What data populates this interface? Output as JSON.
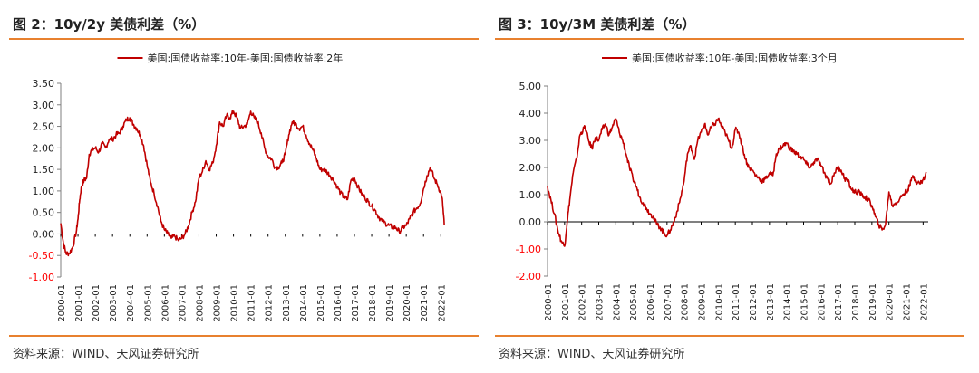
{
  "colors": {
    "series": "#c00000",
    "accent_rule": "#e8812f",
    "negative_label": "#ff0000",
    "axis": "#7f7f7f"
  },
  "charts": [
    {
      "title": "图 2：10y/2y 美债利差（%）",
      "source": "资料来源：WIND、天风证券研究所"
    },
    {
      "title": "图 3：10y/3M 美债利差（%）",
      "source": "资料来源：WIND、天风证券研究所"
    }
  ],
  "chart_data": [
    {
      "type": "line",
      "title": "",
      "xlabel": "",
      "ylabel": "",
      "legend_position": "top-center",
      "grid": false,
      "ylim": [
        -1.0,
        3.5
      ],
      "yticks": [
        "3.50",
        "3.00",
        "2.50",
        "2.00",
        "1.50",
        "1.00",
        "0.50",
        "0.00",
        "-0.50",
        "-1.00"
      ],
      "ytick_values": [
        3.5,
        3.0,
        2.5,
        2.0,
        1.5,
        1.0,
        0.5,
        0.0,
        -0.5,
        -1.0
      ],
      "xticks": [
        "2000-01",
        "2001-01",
        "2002-01",
        "2003-01",
        "2004-01",
        "2005-01",
        "2006-01",
        "2007-01",
        "2008-01",
        "2009-01",
        "2010-01",
        "2011-01",
        "2012-01",
        "2013-01",
        "2014-01",
        "2015-01",
        "2016-01",
        "2017-01",
        "2018-01",
        "2019-01",
        "2020-01",
        "2021-01",
        "2022-01"
      ],
      "xlim": [
        2000.0,
        2022.3
      ],
      "series": [
        {
          "name": "美国:国债收益率:10年-美国:国债收益率:2年",
          "x": [
            2000.0,
            2000.15,
            2000.3,
            2000.5,
            2000.7,
            2000.9,
            2001.0,
            2001.1,
            2001.2,
            2001.35,
            2001.5,
            2001.65,
            2001.8,
            2002.0,
            2002.2,
            2002.4,
            2002.6,
            2002.8,
            2003.0,
            2003.2,
            2003.4,
            2003.6,
            2003.8,
            2004.0,
            2004.2,
            2004.4,
            2004.6,
            2004.8,
            2005.0,
            2005.2,
            2005.4,
            2005.6,
            2005.8,
            2006.0,
            2006.2,
            2006.4,
            2006.6,
            2006.8,
            2007.0,
            2007.2,
            2007.4,
            2007.6,
            2007.8,
            2008.0,
            2008.2,
            2008.4,
            2008.6,
            2008.8,
            2009.0,
            2009.2,
            2009.4,
            2009.6,
            2009.8,
            2010.0,
            2010.2,
            2010.4,
            2010.6,
            2010.8,
            2011.0,
            2011.2,
            2011.4,
            2011.6,
            2011.8,
            2012.0,
            2012.2,
            2012.4,
            2012.6,
            2012.8,
            2013.0,
            2013.2,
            2013.4,
            2013.6,
            2013.8,
            2014.0,
            2014.2,
            2014.4,
            2014.6,
            2014.8,
            2015.0,
            2015.2,
            2015.4,
            2015.6,
            2015.8,
            2016.0,
            2016.2,
            2016.4,
            2016.6,
            2016.8,
            2017.0,
            2017.2,
            2017.4,
            2017.6,
            2017.8,
            2018.0,
            2018.2,
            2018.4,
            2018.6,
            2018.8,
            2019.0,
            2019.2,
            2019.4,
            2019.6,
            2019.8,
            2020.0,
            2020.2,
            2020.4,
            2020.6,
            2020.8,
            2021.0,
            2021.2,
            2021.4,
            2021.6,
            2021.8,
            2022.0,
            2022.1,
            2022.2
          ],
          "values": [
            0.25,
            -0.2,
            -0.45,
            -0.45,
            -0.3,
            0.05,
            0.35,
            0.8,
            1.1,
            1.25,
            1.3,
            1.85,
            1.95,
            2.0,
            1.9,
            2.1,
            2.0,
            2.2,
            2.2,
            2.3,
            2.35,
            2.5,
            2.65,
            2.7,
            2.55,
            2.45,
            2.3,
            2.05,
            1.6,
            1.2,
            0.95,
            0.65,
            0.3,
            0.1,
            0.0,
            -0.1,
            -0.05,
            -0.15,
            -0.1,
            0.0,
            0.2,
            0.5,
            0.75,
            1.3,
            1.45,
            1.7,
            1.5,
            1.65,
            2.05,
            2.6,
            2.5,
            2.75,
            2.7,
            2.85,
            2.7,
            2.45,
            2.5,
            2.55,
            2.85,
            2.7,
            2.6,
            2.35,
            2.0,
            1.8,
            1.75,
            1.55,
            1.55,
            1.65,
            1.85,
            2.3,
            2.6,
            2.55,
            2.45,
            2.5,
            2.3,
            2.1,
            1.95,
            1.75,
            1.5,
            1.5,
            1.45,
            1.35,
            1.25,
            1.1,
            0.95,
            0.85,
            0.8,
            1.25,
            1.3,
            1.1,
            0.95,
            0.85,
            0.75,
            0.65,
            0.55,
            0.4,
            0.3,
            0.25,
            0.2,
            0.15,
            0.15,
            0.05,
            0.15,
            0.2,
            0.35,
            0.5,
            0.6,
            0.7,
            1.05,
            1.35,
            1.55,
            1.3,
            1.15,
            0.95,
            0.75,
            0.2
          ]
        }
      ]
    },
    {
      "type": "line",
      "title": "",
      "xlabel": "",
      "ylabel": "",
      "legend_position": "top-center",
      "grid": false,
      "ylim": [
        -2.0,
        5.0
      ],
      "yticks": [
        "5.00",
        "4.00",
        "3.00",
        "2.00",
        "1.00",
        "0.00",
        "-1.00",
        "-2.00"
      ],
      "ytick_values": [
        5.0,
        4.0,
        3.0,
        2.0,
        1.0,
        0.0,
        -1.0,
        -2.0
      ],
      "xticks": [
        "2000-01",
        "2001-01",
        "2002-01",
        "2003-01",
        "2004-01",
        "2005-01",
        "2006-01",
        "2007-01",
        "2008-01",
        "2009-01",
        "2010-01",
        "2011-01",
        "2012-01",
        "2013-01",
        "2014-01",
        "2015-01",
        "2016-01",
        "2017-01",
        "2018-01",
        "2019-01",
        "2020-01",
        "2021-01",
        "2022-01"
      ],
      "xlim": [
        2000.0,
        2022.3
      ],
      "series": [
        {
          "name": "美国:国债收益率:10年-美国:国债收益率:3个月",
          "x": [
            2000.0,
            2000.2,
            2000.4,
            2000.6,
            2000.8,
            2001.0,
            2001.15,
            2001.3,
            2001.5,
            2001.7,
            2001.9,
            2002.0,
            2002.2,
            2002.4,
            2002.6,
            2002.8,
            2003.0,
            2003.2,
            2003.4,
            2003.6,
            2003.8,
            2004.0,
            2004.2,
            2004.4,
            2004.6,
            2004.8,
            2005.0,
            2005.2,
            2005.4,
            2005.6,
            2005.8,
            2006.0,
            2006.2,
            2006.4,
            2006.6,
            2006.8,
            2007.0,
            2007.2,
            2007.4,
            2007.6,
            2007.8,
            2008.0,
            2008.2,
            2008.4,
            2008.6,
            2008.8,
            2009.0,
            2009.2,
            2009.4,
            2009.6,
            2009.8,
            2010.0,
            2010.2,
            2010.4,
            2010.6,
            2010.8,
            2011.0,
            2011.2,
            2011.4,
            2011.6,
            2011.8,
            2012.0,
            2012.2,
            2012.4,
            2012.6,
            2012.8,
            2013.0,
            2013.2,
            2013.4,
            2013.6,
            2013.8,
            2014.0,
            2014.2,
            2014.4,
            2014.6,
            2014.8,
            2015.0,
            2015.2,
            2015.4,
            2015.6,
            2015.8,
            2016.0,
            2016.2,
            2016.4,
            2016.6,
            2016.8,
            2017.0,
            2017.2,
            2017.4,
            2017.6,
            2017.8,
            2018.0,
            2018.2,
            2018.4,
            2018.6,
            2018.8,
            2019.0,
            2019.2,
            2019.4,
            2019.6,
            2019.8,
            2020.0,
            2020.2,
            2020.4,
            2020.6,
            2020.8,
            2021.0,
            2021.2,
            2021.4,
            2021.6,
            2021.8,
            2022.0,
            2022.2
          ],
          "values": [
            1.3,
            0.8,
            0.3,
            -0.3,
            -0.7,
            -0.9,
            0.0,
            0.8,
            1.8,
            2.3,
            3.2,
            3.3,
            3.5,
            3.0,
            2.7,
            3.1,
            3.0,
            3.4,
            3.6,
            3.2,
            3.5,
            3.8,
            3.3,
            3.0,
            2.5,
            2.0,
            1.6,
            1.3,
            0.9,
            0.7,
            0.5,
            0.3,
            0.2,
            -0.1,
            -0.2,
            -0.4,
            -0.5,
            -0.3,
            0.0,
            0.4,
            0.9,
            1.5,
            2.5,
            2.8,
            2.3,
            3.0,
            3.3,
            3.6,
            3.2,
            3.5,
            3.6,
            3.8,
            3.5,
            3.3,
            3.0,
            2.7,
            3.4,
            3.3,
            2.8,
            2.3,
            2.0,
            1.9,
            1.7,
            1.6,
            1.5,
            1.6,
            1.8,
            1.7,
            2.5,
            2.7,
            2.8,
            2.9,
            2.7,
            2.6,
            2.5,
            2.4,
            2.3,
            2.1,
            2.0,
            2.2,
            2.3,
            2.1,
            1.8,
            1.6,
            1.4,
            1.8,
            2.0,
            1.9,
            1.6,
            1.5,
            1.2,
            1.1,
            1.1,
            1.0,
            0.9,
            0.8,
            0.6,
            0.2,
            -0.1,
            -0.3,
            -0.1,
            1.1,
            0.6,
            0.7,
            0.8,
            1.0,
            1.1,
            1.3,
            1.7,
            1.5,
            1.4,
            1.55,
            1.8
          ]
        }
      ]
    }
  ]
}
